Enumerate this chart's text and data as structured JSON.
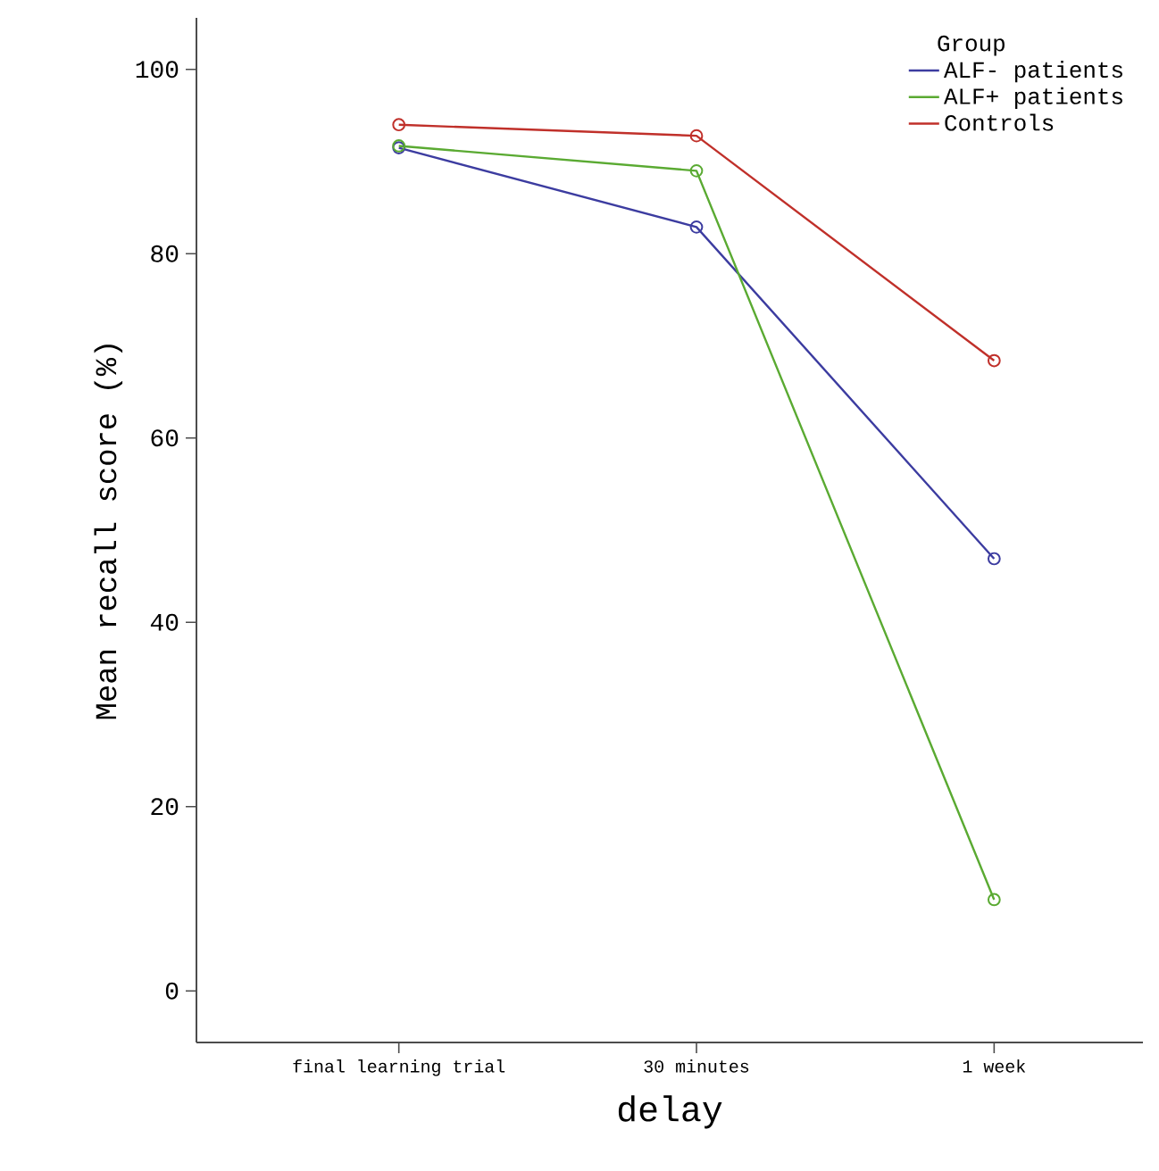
{
  "chart_data": {
    "type": "line",
    "xlabel": "delay",
    "ylabel": "Mean recall score (%)",
    "legend_title": "Group",
    "categories": [
      "final learning trial",
      "30 minutes",
      "1 week"
    ],
    "series": [
      {
        "name": "ALF- patients",
        "color": "#3c3ca0",
        "values": [
          91.5,
          82.9,
          46.9
        ]
      },
      {
        "name": "ALF+ patients",
        "color": "#5aaa32",
        "values": [
          91.7,
          89.0,
          9.9
        ]
      },
      {
        "name": "Controls",
        "color": "#c0302a",
        "values": [
          94.0,
          92.8,
          68.4
        ]
      }
    ],
    "ylim": [
      -5.6,
      105.6
    ],
    "yticks": [
      0,
      20,
      40,
      60,
      80,
      100
    ],
    "grid": false,
    "legend": "top right",
    "marker": "circle",
    "line_style": "solid"
  }
}
